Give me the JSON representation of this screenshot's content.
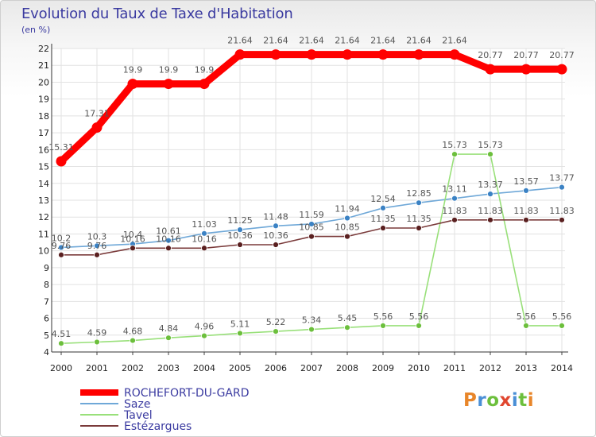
{
  "title": "Evolution du Taux de Taxe d'Habitation",
  "unit_label": "(en %)",
  "logo": {
    "letters": [
      {
        "ch": "P",
        "color": "#e8862a"
      },
      {
        "ch": "r",
        "color": "#4a8fd6"
      },
      {
        "ch": "o",
        "color": "#6cbf3c"
      },
      {
        "ch": "x",
        "color": "#e0462f"
      },
      {
        "ch": "i",
        "color": "#4a8fd6"
      },
      {
        "ch": "t",
        "color": "#6cbf3c"
      },
      {
        "ch": "i",
        "color": "#e8862a"
      }
    ]
  },
  "chart_data": {
    "type": "line",
    "title": "Evolution du Taux de Taxe d'Habitation",
    "ylabel": "(en %)",
    "xlabel": "",
    "x": [
      2000,
      2001,
      2002,
      2003,
      2004,
      2005,
      2006,
      2007,
      2008,
      2009,
      2010,
      2011,
      2012,
      2013,
      2014
    ],
    "ylim": [
      4,
      22
    ],
    "yticks": [
      4,
      5,
      6,
      7,
      8,
      9,
      10,
      11,
      12,
      13,
      14,
      15,
      16,
      17,
      18,
      19,
      20,
      21,
      22
    ],
    "grid": true,
    "legend_position": "bottom-left",
    "series": [
      {
        "name": "ROCHEFORT-DU-GARD",
        "color": "#ff0000",
        "emphasis": true,
        "values": [
          15.31,
          17.31,
          19.9,
          19.9,
          19.9,
          21.64,
          21.64,
          21.64,
          21.64,
          21.64,
          21.64,
          21.64,
          20.77,
          20.77,
          20.77
        ],
        "labels": [
          "15.31",
          "17.31",
          "19.9",
          "19.9",
          "19.9",
          "21.64",
          "21.64",
          "21.64",
          "21.64",
          "21.64",
          "21.64",
          "21.64",
          "20.77",
          "20.77",
          "20.77"
        ]
      },
      {
        "name": "Saze",
        "color": "#6fa8d8",
        "marker": "#3b82c4",
        "values": [
          10.2,
          10.3,
          10.4,
          10.61,
          11.03,
          11.25,
          11.48,
          11.59,
          11.94,
          12.54,
          12.85,
          13.11,
          13.37,
          13.57,
          13.77
        ],
        "labels": [
          "10.2",
          "10.3",
          "10.4",
          "10.61",
          "11.03",
          "11.25",
          "11.48",
          "11.59",
          "11.94",
          "12.54",
          "12.85",
          "13.11",
          "13.37",
          "13.57",
          "13.77"
        ]
      },
      {
        "name": "Tavel",
        "color": "#99e07a",
        "marker": "#6cbf3c",
        "values": [
          4.51,
          4.59,
          4.68,
          4.84,
          4.96,
          5.11,
          5.22,
          5.34,
          5.45,
          5.56,
          5.56,
          15.73,
          15.73,
          5.56,
          5.56
        ],
        "labels": [
          "4.51",
          "4.59",
          "4.68",
          "4.84",
          "4.96",
          "5.11",
          "5.22",
          "5.34",
          "5.45",
          "5.56",
          "5.56",
          "15.73",
          "15.73",
          "5.56",
          "5.56"
        ]
      },
      {
        "name": "Estézargues",
        "color": "#7a3a3a",
        "marker": "#5a2020",
        "values": [
          9.76,
          9.76,
          10.16,
          10.16,
          10.16,
          10.36,
          10.36,
          10.85,
          10.85,
          11.35,
          11.35,
          11.83,
          11.83,
          11.83,
          11.83
        ],
        "labels": [
          "9.76",
          "9.76",
          "10.16",
          "10.16",
          "10.16",
          "10.36",
          "10.36",
          "10.85",
          "10.85",
          "11.35",
          "11.35",
          "11.83",
          "11.83",
          "11.83",
          "11.83"
        ]
      }
    ]
  }
}
